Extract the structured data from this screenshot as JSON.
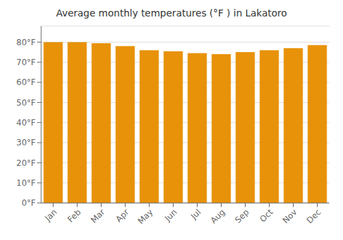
{
  "chart_data": {
    "type": "bar",
    "title": "Average monthly temperatures (°F ) in Lakatoro",
    "categories": [
      "Jan",
      "Feb",
      "Mar",
      "Apr",
      "May",
      "Jun",
      "Jul",
      "Aug",
      "Sep",
      "Oct",
      "Nov",
      "Dec"
    ],
    "values": [
      80,
      80,
      79.5,
      78,
      76,
      75.5,
      74.5,
      74,
      75,
      76,
      77,
      78.5
    ],
    "color": "#E8920A",
    "ylim": [
      0,
      88
    ],
    "yticks": [
      {
        "value": 0,
        "label": "0°F"
      },
      {
        "value": 10,
        "label": "10°F"
      },
      {
        "value": 20,
        "label": "20°F"
      },
      {
        "value": 30,
        "label": "30°F"
      },
      {
        "value": 40,
        "label": "40°F"
      },
      {
        "value": 50,
        "label": "50°F"
      },
      {
        "value": 60,
        "label": "60°F"
      },
      {
        "value": 70,
        "label": "70°F"
      },
      {
        "value": 80,
        "label": "80°F"
      }
    ],
    "grid": true
  }
}
